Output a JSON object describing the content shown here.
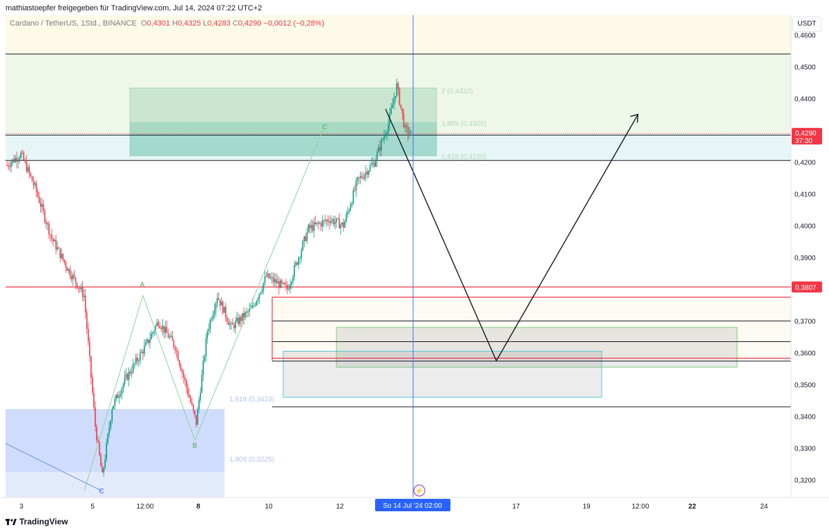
{
  "header": {
    "caption": "mathiastoepfer freigegeben für TradingView.com, Jul 14, 2024 07:22 UTC+2",
    "symbol": "Cardano / TetherUS, 1Std., BINANCE",
    "open_label": "O",
    "open": "0,4301",
    "high_label": "H",
    "high": "0,4325",
    "low_label": "L",
    "low": "0,4283",
    "close_label": "C",
    "close": "0,4290",
    "change": "−0,0012 (−0,28%)"
  },
  "price_axis": {
    "currency": "USDT",
    "ticks": [
      "0,4600",
      "0,4500",
      "0,4400",
      "0,4200",
      "0,4100",
      "0,4000",
      "0,3900",
      "0,3700",
      "0,3600",
      "0,3500",
      "0,3400",
      "0,3300",
      "0,3200"
    ],
    "tick_values": [
      0.46,
      0.45,
      0.44,
      0.42,
      0.41,
      0.4,
      0.39,
      0.37,
      0.36,
      0.35,
      0.34,
      0.33,
      0.32
    ],
    "current_price": "0,4290",
    "countdown": "37:30",
    "marked_level": "0,3807",
    "colors": {
      "current": "#f23645",
      "marked": "#f23645"
    }
  },
  "time_axis": {
    "ticks": [
      "3",
      "5",
      "12:00",
      "8",
      "10",
      "12",
      "17",
      "19",
      "12:00",
      "22",
      "24"
    ],
    "bold_ticks": [
      "8",
      "22"
    ],
    "crosshair_label": "So 14 Jul '24   02:00"
  },
  "annotations": {
    "waves": [
      "A",
      "B",
      "C",
      "C"
    ],
    "fib_labels": [
      "2 (0,4433)",
      "1,809 (0,4326)",
      "1,618 (0,4220)",
      "1,618 (0,3423)",
      "1,809 (0,3225)"
    ]
  },
  "footer": {
    "brand": "TradingView"
  },
  "chart_data": {
    "type": "candlestick",
    "title": "Cardano / TetherUS, 1Std., BINANCE",
    "ylabel": "USDT",
    "ylim": [
      0.3145,
      0.4662
    ],
    "x_ticks": [
      "3",
      "5",
      "12:00",
      "8",
      "10",
      "12",
      "17",
      "19",
      "12:00",
      "22",
      "24"
    ],
    "price_path": [
      {
        "bar": 0,
        "price": 0.419
      },
      {
        "bar": 10,
        "price": 0.4225
      },
      {
        "bar": 20,
        "price": 0.412
      },
      {
        "bar": 32,
        "price": 0.396
      },
      {
        "bar": 44,
        "price": 0.386
      },
      {
        "bar": 55,
        "price": 0.378
      },
      {
        "bar": 63,
        "price": 0.337
      },
      {
        "bar": 68,
        "price": 0.321
      },
      {
        "bar": 75,
        "price": 0.343
      },
      {
        "bar": 85,
        "price": 0.352
      },
      {
        "bar": 100,
        "price": 0.363
      },
      {
        "bar": 108,
        "price": 0.37
      },
      {
        "bar": 120,
        "price": 0.362
      },
      {
        "bar": 135,
        "price": 0.338
      },
      {
        "bar": 143,
        "price": 0.367
      },
      {
        "bar": 150,
        "price": 0.378
      },
      {
        "bar": 160,
        "price": 0.368
      },
      {
        "bar": 175,
        "price": 0.374
      },
      {
        "bar": 185,
        "price": 0.384
      },
      {
        "bar": 200,
        "price": 0.38
      },
      {
        "bar": 215,
        "price": 0.399
      },
      {
        "bar": 230,
        "price": 0.402
      },
      {
        "bar": 240,
        "price": 0.4
      },
      {
        "bar": 250,
        "price": 0.414
      },
      {
        "bar": 262,
        "price": 0.42
      },
      {
        "bar": 272,
        "price": 0.432
      },
      {
        "bar": 278,
        "price": 0.444
      },
      {
        "bar": 284,
        "price": 0.43
      },
      {
        "bar": 288,
        "price": 0.429
      }
    ],
    "horizontal_levels": [
      {
        "price": 0.454,
        "color": "#131722"
      },
      {
        "price": 0.4285,
        "color": "#131722"
      },
      {
        "price": 0.4205,
        "color": "#131722"
      },
      {
        "price": 0.3807,
        "color": "#f23645"
      },
      {
        "price": 0.3775,
        "color": "#f23645"
      },
      {
        "price": 0.37,
        "color": "#131722"
      },
      {
        "price": 0.3635,
        "color": "#131722"
      },
      {
        "price": 0.3583,
        "color": "#f23645"
      },
      {
        "price": 0.3574,
        "color": "#131722"
      },
      {
        "price": 0.343,
        "color": "#131722"
      }
    ],
    "projection_path": [
      {
        "bar": 270,
        "price": 0.4367
      },
      {
        "bar": 349,
        "price": 0.3575
      },
      {
        "bar": 450,
        "price": 0.435
      }
    ],
    "colors": {
      "up": "#089981",
      "down": "#f23645",
      "wave": "#4caf50",
      "wave_label": "#2962ff"
    }
  }
}
